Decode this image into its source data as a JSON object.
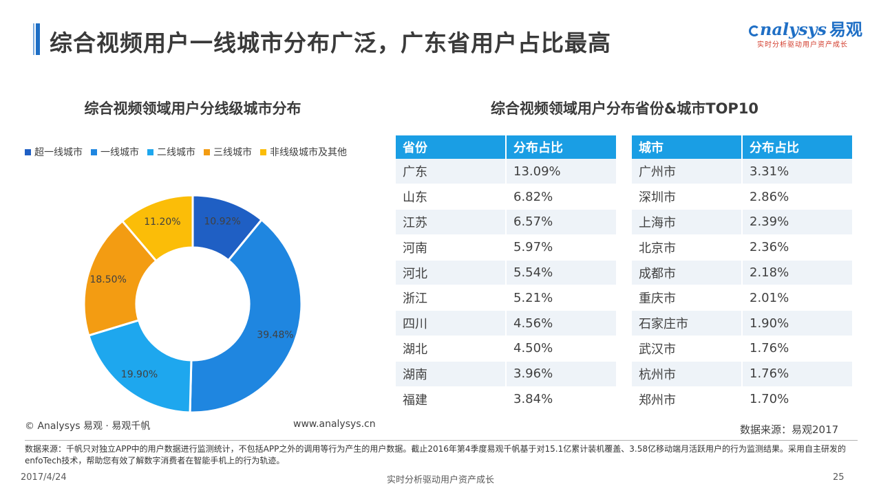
{
  "header": {
    "title": "综合视频用户一线城市分布广泛，广东省用户占比最高",
    "logo_text": "nalysys",
    "logo_cn": "易观",
    "logo_slogan": "实时分析驱动用户资产成长"
  },
  "colors": {
    "accent": "#1f6fc5",
    "table_header": "#1a9ee4"
  },
  "chart_data": [
    {
      "type": "pie",
      "variant": "donut",
      "title": "综合视频领域用户分线级城市分布",
      "legend_position": "top",
      "categories": [
        "超一线城市",
        "一线城市",
        "二线城市",
        "三线城市",
        "非线级城市及其他"
      ],
      "values": [
        10.92,
        39.48,
        19.9,
        18.5,
        11.2
      ],
      "labels": [
        "10.92%",
        "39.48%",
        "19.90%",
        "18.50%",
        "11.20%"
      ],
      "colors": [
        "#1f5fc4",
        "#1f86e0",
        "#1ea7ee",
        "#f39c12",
        "#fbbd08"
      ]
    },
    {
      "type": "table",
      "title": "综合视频领域用户分布省份&城市TOP10",
      "columns": [
        "省份",
        "分布占比"
      ],
      "rows": [
        [
          "广东",
          "13.09%"
        ],
        [
          "山东",
          "6.82%"
        ],
        [
          "江苏",
          "6.57%"
        ],
        [
          "河南",
          "5.97%"
        ],
        [
          "河北",
          "5.54%"
        ],
        [
          "浙江",
          "5.21%"
        ],
        [
          "四川",
          "4.56%"
        ],
        [
          "湖北",
          "4.50%"
        ],
        [
          "湖南",
          "3.96%"
        ],
        [
          "福建",
          "3.84%"
        ]
      ]
    },
    {
      "type": "table",
      "columns": [
        "城市",
        "分布占比"
      ],
      "rows": [
        [
          "广州市",
          "3.31%"
        ],
        [
          "深圳市",
          "2.86%"
        ],
        [
          "上海市",
          "2.39%"
        ],
        [
          "北京市",
          "2.36%"
        ],
        [
          "成都市",
          "2.18%"
        ],
        [
          "重庆市",
          "2.01%"
        ],
        [
          "石家庄市",
          "1.90%"
        ],
        [
          "武汉市",
          "1.76%"
        ],
        [
          "杭州市",
          "1.76%"
        ],
        [
          "郑州市",
          "1.70%"
        ]
      ]
    }
  ],
  "footer": {
    "copyright": "© Analysys 易观 · 易观千帆",
    "website": "www.analysys.cn",
    "data_source": "数据来源：易观2017",
    "note": "数据来源：千帆只对独立APP中的用户数据进行监测统计，不包括APP之外的调用等行为产生的用户数据。截止2016年第4季度易观千帆基于对15.1亿累计装机覆盖、3.58亿移动端月活跃用户的行为监测结果。采用自主研发的enfoTech技术，帮助您有效了解数字消费者在智能手机上的行为轨迹。",
    "date": "2017/4/24",
    "slogan": "实时分析驱动用户资产成长",
    "page": "25"
  }
}
